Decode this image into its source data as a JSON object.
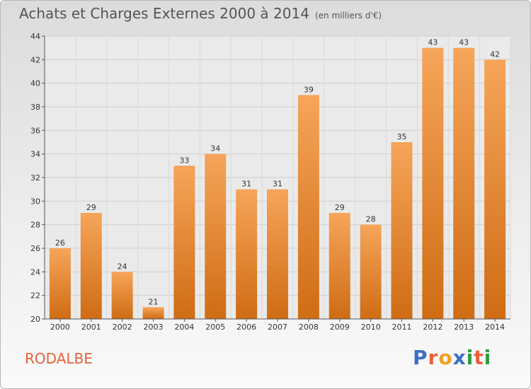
{
  "header": {
    "title": "Achats et Charges Externes 2000 à 2014",
    "subtitle": "(en milliers d'€)"
  },
  "footer": {
    "commune": "RODALBE",
    "logo_text": "Proxiti"
  },
  "colors": {
    "bar_top": "#f6a55a",
    "bar_bottom": "#cf6c14",
    "commune": "#e8613c"
  },
  "chart_data": {
    "type": "bar",
    "title": "Achats et Charges Externes 2000 à 2014",
    "subtitle": "(en milliers d'€)",
    "categories": [
      "2000",
      "2001",
      "2002",
      "2003",
      "2004",
      "2005",
      "2006",
      "2007",
      "2008",
      "2009",
      "2010",
      "2011",
      "2012",
      "2013",
      "2014"
    ],
    "values": [
      26,
      29,
      24,
      21,
      33,
      34,
      31,
      31,
      39,
      29,
      28,
      35,
      43,
      43,
      42
    ],
    "ylim": [
      20,
      44
    ],
    "yticks": [
      20,
      22,
      24,
      26,
      28,
      30,
      32,
      34,
      36,
      38,
      40,
      42,
      44
    ],
    "grid": true,
    "legend": "none"
  }
}
